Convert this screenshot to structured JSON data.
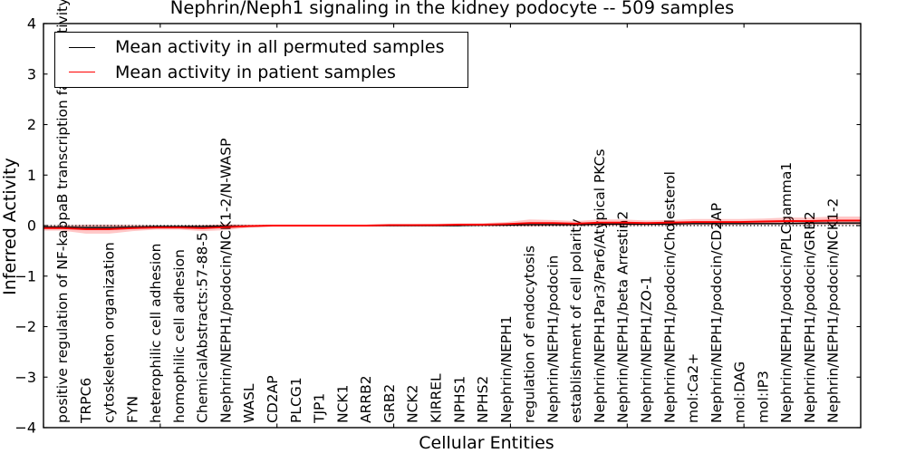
{
  "chart_data": {
    "type": "line",
    "title": "Nephrin/Neph1 signaling in the kidney podocyte -- 509 samples",
    "xlabel": "Cellular Entities",
    "ylabel": "Inferred Activity",
    "ylim": [
      -4,
      4
    ],
    "ytick_values": [
      4,
      3,
      2,
      1,
      0,
      -1,
      -2,
      -3,
      -4
    ],
    "ytick_labels": [
      "4",
      "3",
      "2",
      "1",
      "0",
      "−1",
      "−2",
      "−3",
      "−4"
    ],
    "grid": false,
    "legend_position": "upper-left",
    "zero_line": {
      "y": 0,
      "style": "dotted",
      "color": "#000000"
    },
    "categories": [
      "positive regulation of NF-kappaB transcription factor activity",
      "TRPC6",
      "cytoskeleton organization",
      "FYN",
      "heterophilic cell adhesion",
      "homophilic cell adhesion",
      "ChemicalAbstracts:57-88-5",
      "Nephrin/NEPH1/podocin/NCK1-2/N-WASP",
      "WASL",
      "CD2AP",
      "PLCG1",
      "TJP1",
      "NCK1",
      "ARRB2",
      "GRB2",
      "NCK2",
      "KIRREL",
      "NPHS1",
      "NPHS2",
      "Nephrin/NEPH1",
      "regulation of endocytosis",
      "Nephrin/NEPH1/podocin",
      "establishment of cell polarity",
      "Nephrin/NEPH1Par3/Par6/Atypical PKCs",
      "Nephrin/NEPH1/beta Arrestin2",
      "Nephrin/NEPH1/ZO-1",
      "Nephrin/NEPH1/podocin/Cholesterol",
      "mol:Ca2+",
      "Nephrin/NEPH1/podocin/CD2AP",
      "mol:DAG",
      "mol:IP3",
      "Nephrin/NEPH1/podocin/PLCgamma1",
      "Nephrin/NEPH1/podocin/GRB2",
      "Nephrin/NEPH1/podocin/NCK1-2"
    ],
    "series": [
      {
        "name": "Mean activity in all permuted samples",
        "color": "#000000",
        "band_color": "rgba(0,0,0,0.18)",
        "values": [
          -0.03,
          -0.04,
          -0.04,
          -0.03,
          -0.02,
          -0.02,
          -0.02,
          -0.01,
          -0.01,
          0,
          0,
          0,
          0,
          0,
          0,
          0,
          0,
          0,
          0.01,
          0.01,
          0.02,
          0.02,
          0.02,
          0.03,
          0.03,
          0.03,
          0.03,
          0.04,
          0.04,
          0.04,
          0.04,
          0.04,
          0.05,
          0.05
        ],
        "band_half_widths": [
          0.04,
          0.05,
          0.05,
          0.04,
          0.03,
          0.03,
          0.03,
          0.03,
          0.02,
          0.015,
          0.015,
          0.015,
          0.015,
          0.015,
          0.015,
          0.015,
          0.015,
          0.015,
          0.02,
          0.02,
          0.025,
          0.025,
          0.025,
          0.03,
          0.03,
          0.03,
          0.03,
          0.03,
          0.03,
          0.03,
          0.03,
          0.03,
          0.035,
          0.035
        ]
      },
      {
        "name": "Mean activity in patient samples",
        "color": "#ff0000",
        "band_color": "rgba(255,0,0,0.22)",
        "values": [
          -0.05,
          -0.07,
          -0.07,
          -0.05,
          -0.04,
          -0.04,
          -0.05,
          -0.03,
          -0.01,
          0,
          0,
          0,
          0,
          0,
          0.01,
          0.01,
          0.01,
          0.02,
          0.02,
          0.03,
          0.05,
          0.05,
          0.04,
          0.06,
          0.06,
          0.05,
          0.06,
          0.07,
          0.07,
          0.07,
          0.08,
          0.09,
          0.09,
          0.1
        ],
        "band_half_widths": [
          0.05,
          0.09,
          0.09,
          0.06,
          0.04,
          0.04,
          0.06,
          0.06,
          0.03,
          0.02,
          0.02,
          0.02,
          0.02,
          0.02,
          0.02,
          0.02,
          0.025,
          0.025,
          0.03,
          0.04,
          0.07,
          0.06,
          0.05,
          0.06,
          0.06,
          0.05,
          0.05,
          0.06,
          0.06,
          0.06,
          0.06,
          0.07,
          0.07,
          0.08
        ]
      }
    ]
  }
}
